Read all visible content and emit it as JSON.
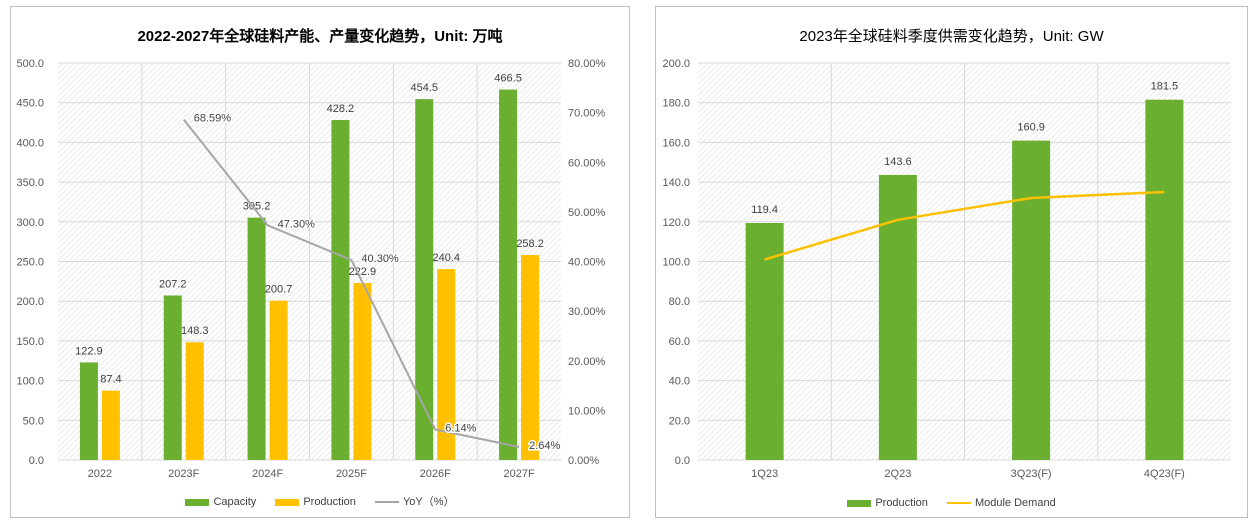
{
  "colors": {
    "capacity": "#6aaf2f",
    "production": "#ffc000",
    "yoy": "#a6a6a6",
    "demand": "#ffc000"
  },
  "chart_data": [
    {
      "type": "bar",
      "title": "2022-2027年全球硅料产能、产量变化趋势，Unit: 万吨",
      "categories": [
        "2022",
        "2023F",
        "2024F",
        "2025F",
        "2026F",
        "2027F"
      ],
      "series": [
        {
          "name": "Capacity",
          "type": "bar",
          "values": [
            122.9,
            207.2,
            305.2,
            428.2,
            454.5,
            466.5
          ]
        },
        {
          "name": "Production",
          "type": "bar",
          "values": [
            87.4,
            148.3,
            200.7,
            222.9,
            240.4,
            258.2
          ]
        },
        {
          "name": "YoY（%）",
          "type": "line",
          "axis": "right",
          "values": [
            null,
            68.59,
            47.3,
            40.3,
            6.14,
            2.64
          ],
          "labels": [
            "",
            "68.59%",
            "47.30%",
            "40.30%",
            "6.14%",
            "2.64%"
          ]
        }
      ],
      "ylim": [
        0,
        500
      ],
      "yticks": [
        "0.0",
        "50.0",
        "100.0",
        "150.0",
        "200.0",
        "250.0",
        "300.0",
        "350.0",
        "400.0",
        "450.0",
        "500.0"
      ],
      "y2lim": [
        0,
        80
      ],
      "y2ticks": [
        "0.00%",
        "10.00%",
        "20.00%",
        "30.00%",
        "40.00%",
        "50.00%",
        "60.00%",
        "70.00%",
        "80.00%"
      ],
      "grid": true,
      "legend": "bottom"
    },
    {
      "type": "bar",
      "title": "2023年全球硅料季度供需变化趋势，Unit: GW",
      "categories": [
        "1Q23",
        "2Q23",
        "3Q23(F)",
        "4Q23(F)"
      ],
      "series": [
        {
          "name": "Production",
          "type": "bar",
          "values": [
            119.4,
            143.6,
            160.9,
            181.5
          ]
        },
        {
          "name": "Module Demand",
          "type": "line",
          "values": [
            101,
            121,
            132,
            135
          ]
        }
      ],
      "ylim": [
        0,
        200
      ],
      "yticks": [
        "0.0",
        "20.0",
        "40.0",
        "60.0",
        "80.0",
        "100.0",
        "120.0",
        "140.0",
        "160.0",
        "180.0",
        "200.0"
      ],
      "grid": true,
      "legend": "bottom"
    }
  ]
}
